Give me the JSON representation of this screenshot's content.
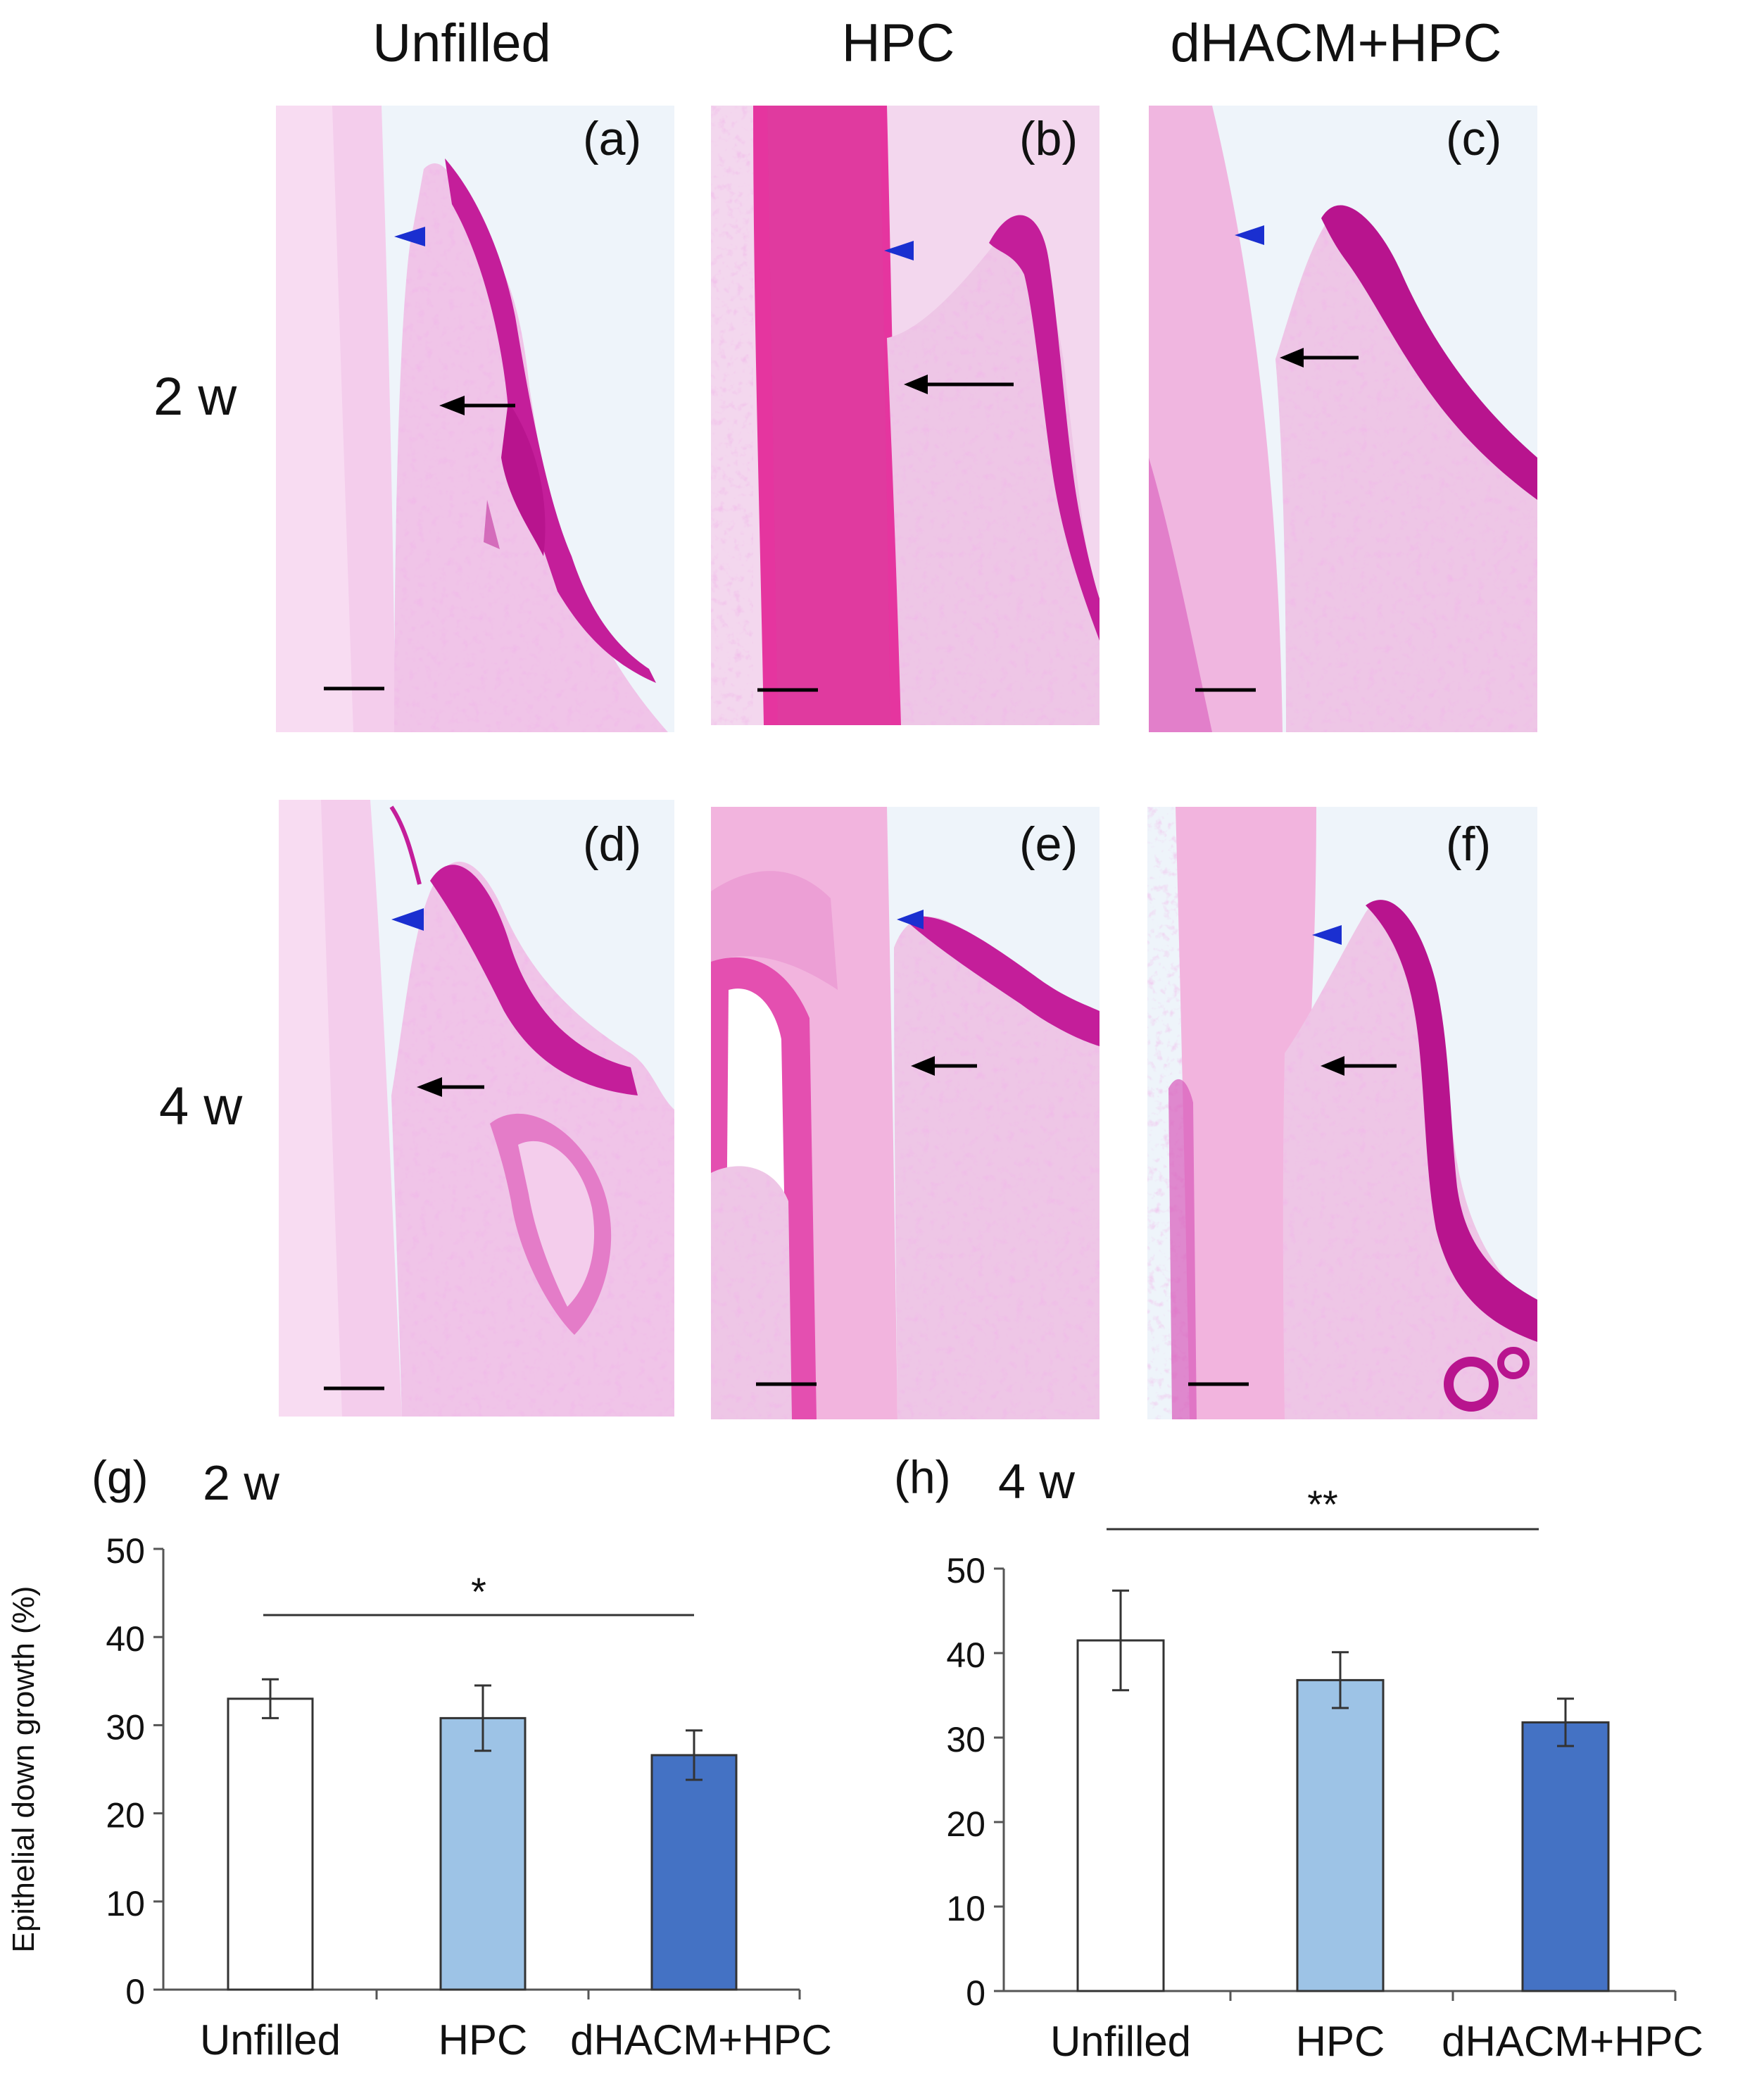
{
  "columns": [
    "Unfilled",
    "HPC",
    "dHACM+HPC"
  ],
  "rows": [
    "2 w",
    "4 w"
  ],
  "panels": [
    {
      "letter": "(a)",
      "group": "Unfilled",
      "time": "2 w"
    },
    {
      "letter": "(b)",
      "group": "HPC",
      "time": "2 w"
    },
    {
      "letter": "(c)",
      "group": "dHACM+HPC",
      "time": "2 w"
    },
    {
      "letter": "(d)",
      "group": "Unfilled",
      "time": "4 w"
    },
    {
      "letter": "(e)",
      "group": "HPC",
      "time": "4 w"
    },
    {
      "letter": "(f)",
      "group": "dHACM+HPC",
      "time": "4 w"
    }
  ],
  "colors": {
    "stain_dark": "#b8148e",
    "stain_mid": "#e23cae",
    "stain_light": "#f2a6d8",
    "tissue_pale": "#eec6e6",
    "background": "#eef4fa",
    "arrowhead_blue": "#1a2fd0",
    "bar_unfilled": "#ffffff",
    "bar_hpc": "#9dc3e6",
    "bar_dhacm_hpc": "#4472c4"
  },
  "chart_data": [
    {
      "type": "bar",
      "panel": "(g)",
      "title": "2 w",
      "ylabel": "Epithelial down growth (%)",
      "categories": [
        "Unfilled",
        "HPC",
        "dHACM+HPC"
      ],
      "values": [
        33,
        30.8,
        26.6
      ],
      "errors": [
        2.2,
        3.7,
        2.8
      ],
      "ylim": [
        0,
        50
      ],
      "yticks": [
        0,
        10,
        20,
        30,
        40,
        50
      ],
      "significance": {
        "from": 0,
        "to": 2,
        "label": "*"
      }
    },
    {
      "type": "bar",
      "panel": "(h)",
      "title": "4 w",
      "ylabel": "",
      "categories": [
        "Unfilled",
        "HPC",
        "dHACM+HPC"
      ],
      "values": [
        41.5,
        36.8,
        31.8
      ],
      "errors": [
        5.9,
        3.3,
        2.8
      ],
      "ylim": [
        0,
        50
      ],
      "yticks": [
        0,
        10,
        20,
        30,
        40,
        50
      ],
      "significance": {
        "from": 0,
        "to": 2,
        "label": "**"
      }
    }
  ]
}
